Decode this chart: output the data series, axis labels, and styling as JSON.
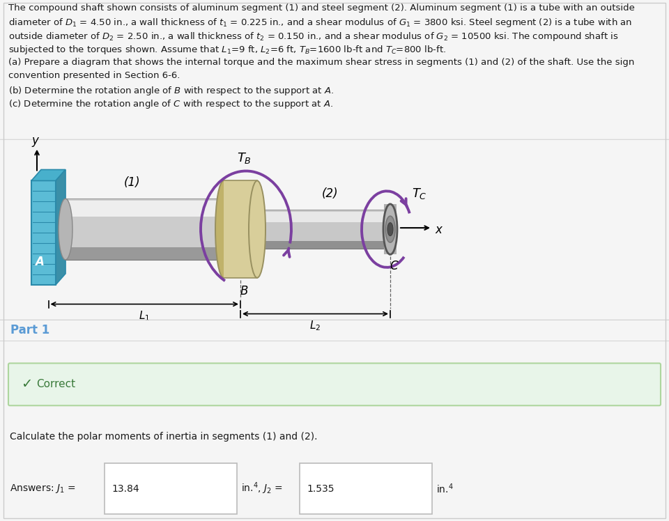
{
  "bg_color": "#f5f5f5",
  "white_bg": "#ffffff",
  "diagram_bg": "#e8eef2",
  "part1_bg": "#ebebeb",
  "correct_bg": "#e8f5e9",
  "correct_border": "#aed69e",
  "correct_text_color": "#4a7a4a",
  "part1_color": "#5b9bd5",
  "wall_face_color": "#5bbcd6",
  "wall_dark_color": "#3a8fa8",
  "wall_side_color": "#2a6f88",
  "shaft1_mid": "#d0d0d0",
  "shaft1_top": "#f0f0f0",
  "shaft1_bot": "#909090",
  "shaft2_mid": "#c8c8c8",
  "shaft2_top": "#e8e8e8",
  "shaft2_bot": "#888888",
  "coupling_face": "#d8ce9a",
  "coupling_side": "#b8aa72",
  "coupling_dark": "#989060",
  "torque_color": "#7b3fa0",
  "sep_color": "#cccccc",
  "box_edge": "#bbbbbb",
  "text_color": "#1a1a1a",
  "dim_color": "#333333",
  "text_lines": [
    "The compound shaft shown consists of aluminum segment (1) and steel segment (2). Aluminum segment (1) is a tube with an outside",
    "diameter of $D_1$ = 4.50 in., a wall thickness of $t_1$ = 0.225 in., and a shear modulus of $G_1$ = 3800 ksi. Steel segment (2) is a tube with an",
    "outside diameter of $D_2$ = 2.50 in., a wall thickness of $t_2$ = 0.150 in., and a shear modulus of $G_2$ = 10500 ksi. The compound shaft is",
    "subjected to the torques shown. Assume that $L_1$=9 ft, $L_2$=6 ft, $T_B$=1600 lb-ft and $T_C$=800 lb-ft.",
    "(a) Prepare a diagram that shows the internal torque and the maximum shear stress in segments (1) and (2) of the shaft. Use the sign",
    "convention presented in Section 6-6.",
    "(b) Determine the rotation angle of $B$ with respect to the support at $A$.",
    "(c) Determine the rotation angle of $C$ with respect to the support at $A$."
  ],
  "part1_label": "Part 1",
  "correct_label": "Correct",
  "calc_label": "Calculate the polar moments of inertia in segments (1) and (2).",
  "j1_value": "13.84",
  "j2_value": "1.535"
}
